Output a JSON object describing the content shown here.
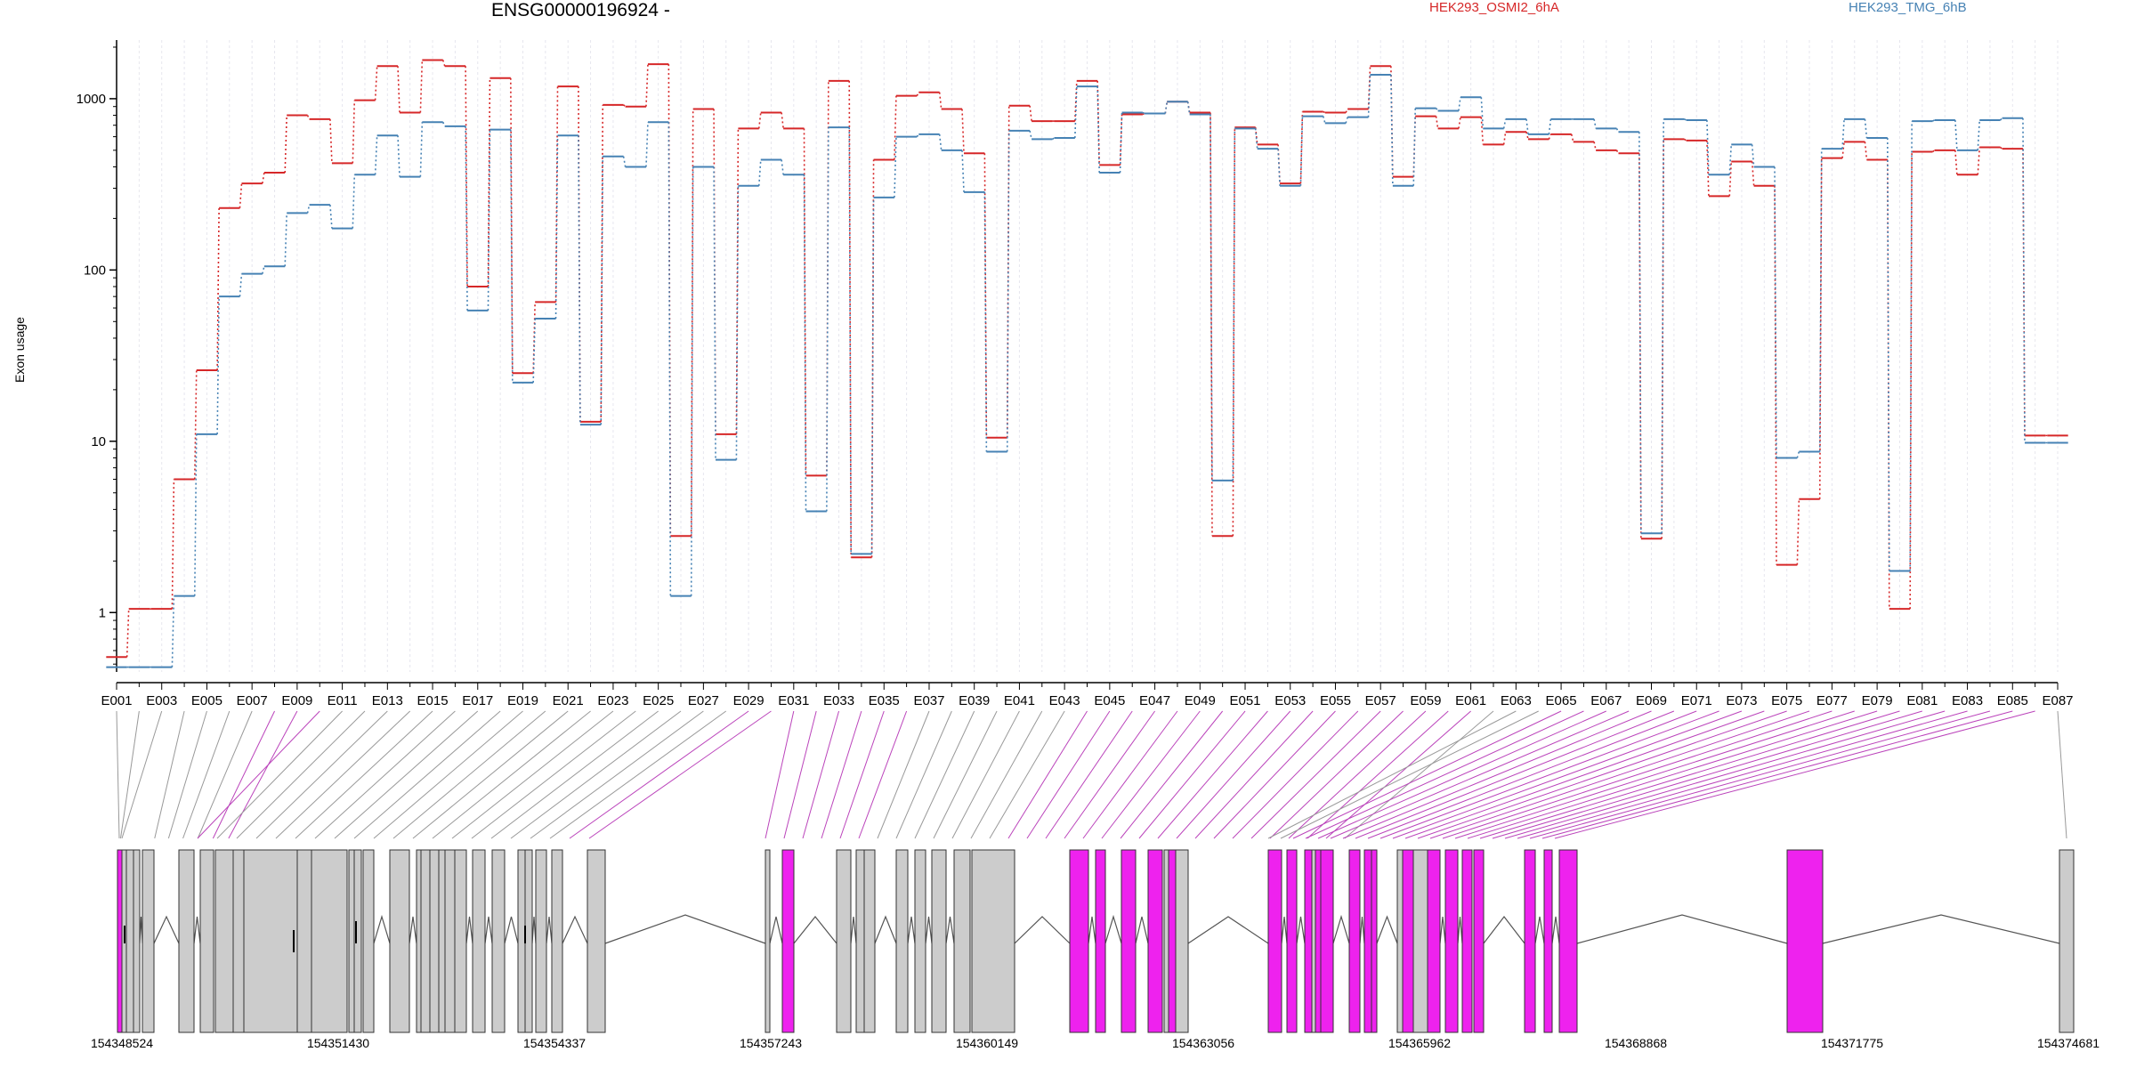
{
  "chart_data": {
    "type": "line",
    "title": "ENSG00000196924 -",
    "ylabel": "Exon usage",
    "yscale": "log",
    "ylim": [
      0.45,
      2200
    ],
    "yticks": [
      1,
      10,
      100,
      1000
    ],
    "ytick_labels": [
      "1",
      "10",
      "100",
      "1000"
    ],
    "legend_placement": "top",
    "categories": [
      "E001",
      "E002",
      "E003",
      "E004",
      "E005",
      "E006",
      "E007",
      "E008",
      "E009",
      "E010",
      "E011",
      "E012",
      "E013",
      "E014",
      "E015",
      "E016",
      "E017",
      "E018",
      "E019",
      "E020",
      "E021",
      "E022",
      "E023",
      "E024",
      "E025",
      "E026",
      "E027",
      "E028",
      "E029",
      "E030",
      "E031",
      "E032",
      "E033",
      "E034",
      "E035",
      "E036",
      "E037",
      "E038",
      "E039",
      "E040",
      "E041",
      "E042",
      "E043",
      "E044",
      "E045",
      "E046",
      "E047",
      "E048",
      "E049",
      "E050",
      "E051",
      "E052",
      "E053",
      "E054",
      "E055",
      "E056",
      "E057",
      "E058",
      "E059",
      "E060",
      "E061",
      "E062",
      "E063",
      "E064",
      "E065",
      "E066",
      "E067",
      "E068",
      "E069",
      "E070",
      "E071",
      "E072",
      "E073",
      "E074",
      "E075",
      "E076",
      "E077",
      "E078",
      "E079",
      "E080",
      "E081",
      "E082",
      "E083",
      "E084",
      "E085",
      "E086",
      "E087"
    ],
    "xtick_labels": [
      "E001",
      "E003",
      "E005",
      "E007",
      "E009",
      "E011",
      "E013",
      "E015",
      "E017",
      "E019",
      "E021",
      "E023",
      "E025",
      "E027",
      "E029",
      "E031",
      "E033",
      "E035",
      "E037",
      "E039",
      "E041",
      "E043",
      "E045",
      "E047",
      "E049",
      "E051",
      "E053",
      "E055",
      "E057",
      "E059",
      "E061",
      "E063",
      "E065",
      "E067",
      "E069",
      "E071",
      "E073",
      "E075",
      "E077",
      "E079",
      "E081",
      "E083",
      "E085",
      "E087"
    ],
    "series": [
      {
        "name": "HEK293_OSMI2_6hA",
        "color": "#d62728",
        "values": [
          0.55,
          1.05,
          1.05,
          6,
          26,
          230,
          320,
          370,
          800,
          760,
          420,
          980,
          1550,
          830,
          1680,
          1550,
          80,
          1320,
          25,
          65,
          1180,
          13,
          920,
          900,
          1590,
          2.8,
          870,
          11,
          670,
          830,
          670,
          6.3,
          1270,
          2.1,
          440,
          1040,
          1090,
          870,
          480,
          10.5,
          910,
          740,
          740,
          1270,
          410,
          810,
          820,
          960,
          830,
          2.8,
          680,
          540,
          320,
          840,
          830,
          870,
          1550,
          350,
          790,
          670,
          780,
          540,
          640,
          580,
          620,
          560,
          500,
          480,
          2.7,
          580,
          570,
          270,
          430,
          310,
          1.9,
          4.6,
          450,
          560,
          440,
          1.05,
          490,
          500,
          360,
          520,
          510,
          10.8,
          10.8
        ]
      },
      {
        "name": "HEK293_TMG_6hB",
        "color": "#4682b4",
        "values": [
          0.48,
          0.48,
          0.48,
          1.25,
          11,
          70,
          95,
          105,
          215,
          240,
          175,
          360,
          610,
          350,
          730,
          690,
          58,
          660,
          22,
          52,
          610,
          12.5,
          460,
          400,
          730,
          1.25,
          400,
          7.8,
          310,
          440,
          360,
          3.9,
          680,
          2.2,
          265,
          600,
          620,
          500,
          285,
          8.7,
          650,
          580,
          590,
          1180,
          370,
          830,
          820,
          960,
          810,
          5.9,
          670,
          510,
          310,
          790,
          720,
          780,
          1380,
          310,
          880,
          850,
          1020,
          670,
          760,
          620,
          760,
          760,
          670,
          640,
          2.9,
          760,
          750,
          360,
          540,
          400,
          8.0,
          8.7,
          510,
          760,
          590,
          1.75,
          740,
          750,
          500,
          750,
          770,
          9.8,
          9.8
        ]
      }
    ],
    "genomic_axis": {
      "tick_labels": [
        "154348524",
        "154351430",
        "154354337",
        "154357243",
        "154360149",
        "154363056",
        "154365962",
        "154368868",
        "154371775",
        "154374681"
      ]
    },
    "annotations": {
      "exon_colors": {
        "normal": "#cccccc",
        "highlighted": "#ee22ee"
      }
    }
  }
}
